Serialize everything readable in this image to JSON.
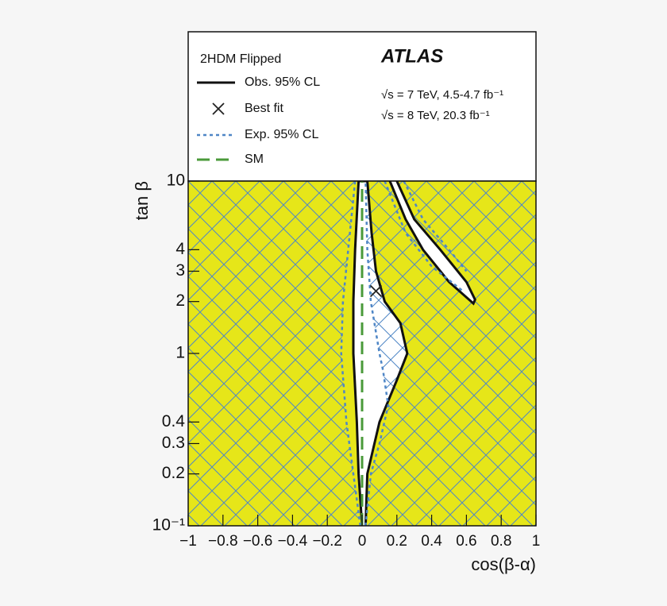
{
  "chart_data": {
    "type": "contour",
    "xlabel": "cos(β-α)",
    "ylabel": "tan β",
    "legend_title": "2HDM Flipped",
    "experiment": "ATLAS",
    "annotations": [
      "√s = 7 TeV, 4.5-4.7 fb⁻¹",
      "√s = 8 TeV, 20.3 fb⁻¹"
    ],
    "xlim": [
      -1,
      1
    ],
    "ylim": [
      0.1,
      10
    ],
    "log_y": true,
    "grid": false,
    "xticks": [
      {
        "value": -1,
        "label": "−1"
      },
      {
        "value": -0.8,
        "label": "−0.8"
      },
      {
        "value": -0.6,
        "label": "−0.6"
      },
      {
        "value": -0.4,
        "label": "−0.4"
      },
      {
        "value": -0.2,
        "label": "−0.2"
      },
      0,
      0.2,
      0.4,
      0.6,
      0.8,
      1
    ],
    "yticks": [
      {
        "value": 0.1,
        "label": "10⁻¹"
      },
      0.2,
      0.3,
      0.4,
      1,
      2,
      3,
      4,
      10
    ],
    "excluded_color": "#e6e619",
    "hatch_color": "#4f86c6",
    "series": [
      {
        "name": "Obs. 95% CL",
        "color": "#111111",
        "style": "solid",
        "x": [
          0.0,
          -0.02,
          -0.03,
          -0.05,
          -0.05,
          -0.04,
          -0.02,
          0.03,
          0.055,
          0.08,
          0.13,
          0.22,
          0.26,
          0.2,
          0.1,
          0.03,
          0.02,
          null,
          0.2,
          0.3,
          0.45,
          0.6,
          0.65,
          0.64,
          0.5,
          0.35,
          0.25,
          0.16
        ],
        "values": [
          0.1,
          0.2,
          0.4,
          1,
          2,
          4,
          10,
          10,
          5,
          3,
          2,
          1.5,
          1,
          0.7,
          0.4,
          0.2,
          0.1,
          null,
          10,
          6,
          4,
          2.6,
          2.05,
          1.95,
          2.6,
          4,
          6,
          10
        ]
      },
      {
        "name": "Exp. 95% CL",
        "color": "#4f86c6",
        "style": "dotted",
        "x": [
          -0.01,
          -0.05,
          -0.09,
          -0.12,
          -0.11,
          -0.08,
          -0.04,
          null,
          0.02,
          0.05,
          0.1,
          0.15,
          0.12,
          0.1,
          0.05,
          0.03,
          0.02,
          null,
          0.13,
          0.25,
          0.4,
          0.58,
          null,
          0.24,
          0.35,
          0.5,
          0.6
        ],
        "values": [
          0.1,
          0.2,
          0.4,
          1,
          2,
          4,
          10,
          null,
          0.1,
          0.2,
          0.3,
          0.5,
          0.8,
          1,
          2,
          4,
          10,
          null,
          10,
          5,
          3.2,
          2.3,
          null,
          10,
          6,
          4,
          3
        ]
      },
      {
        "name": "SM",
        "color": "#4a9a3a",
        "style": "dashed",
        "x": [
          0,
          0
        ],
        "values": [
          0.1,
          10
        ]
      }
    ],
    "best_fit": {
      "name": "Best fit",
      "x": 0.08,
      "y": 2.3
    }
  }
}
